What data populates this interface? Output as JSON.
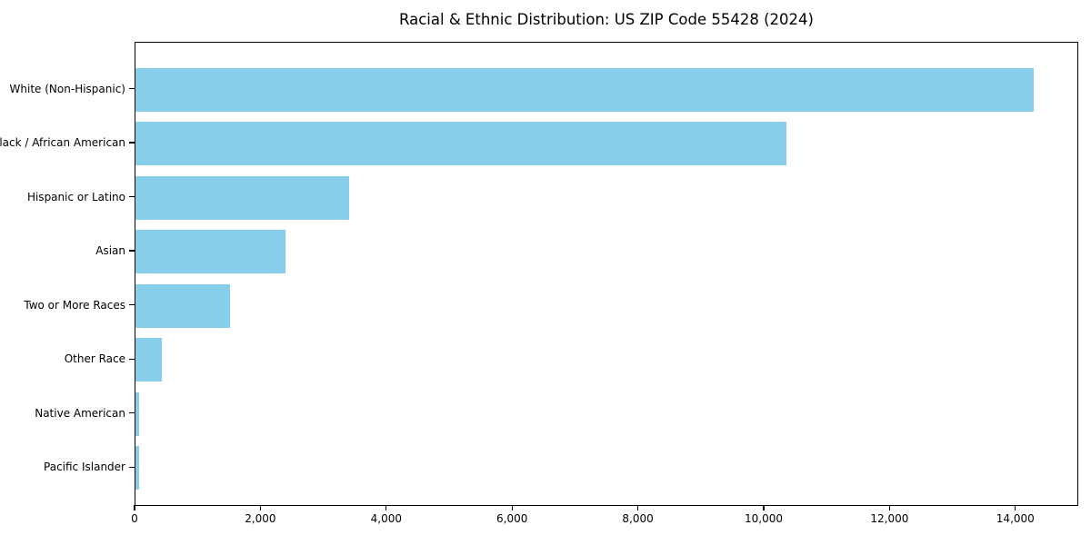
{
  "title": "Racial & Ethnic Distribution: US ZIP Code 55428 (2024)",
  "colors": {
    "bar": "#87CEEB",
    "axis": "#000000",
    "text": "#000000",
    "background": "#FFFFFF"
  },
  "chart_data": {
    "type": "bar",
    "orientation": "horizontal",
    "title": "Racial & Ethnic Distribution: US ZIP Code 55428 (2024)",
    "categories": [
      "White (Non-Hispanic)",
      "Black / African American",
      "Hispanic or Latino",
      "Asian",
      "Two or More Races",
      "Other Race",
      "Native American",
      "Pacific Islander"
    ],
    "values": [
      14270,
      10350,
      3390,
      2380,
      1500,
      420,
      60,
      50
    ],
    "xlabel": "",
    "ylabel": "",
    "xlim": [
      0,
      15000
    ],
    "xticks": [
      0,
      2000,
      4000,
      6000,
      8000,
      10000,
      12000,
      14000
    ],
    "xtick_labels": [
      "0",
      "2,000",
      "4,000",
      "6,000",
      "8,000",
      "10,000",
      "12,000",
      "14,000"
    ],
    "grid": false,
    "legend": null,
    "bar_color": "#87CEEB"
  }
}
